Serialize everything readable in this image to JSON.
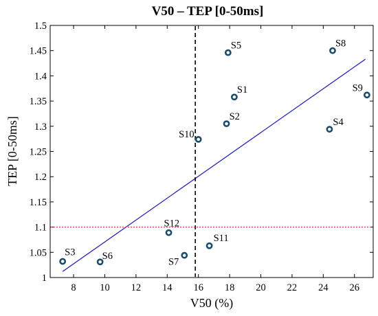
{
  "chart_data": {
    "type": "scatter",
    "title": "V50 – TEP [0-50ms]",
    "xlabel": "V50 (%)",
    "ylabel": "TEP [0-50ms]",
    "xlim": [
      6.5,
      27.2
    ],
    "ylim": [
      1.0,
      1.5
    ],
    "xticks": [
      "8",
      "10",
      "12",
      "14",
      "16",
      "18",
      "20",
      "22",
      "24",
      "26"
    ],
    "yticks": [
      "1",
      "1.05",
      "1.1",
      "1.15",
      "1.2",
      "1.25",
      "1.3",
      "1.35",
      "1.4",
      "1.45",
      "1.5"
    ],
    "grid": false,
    "points": [
      {
        "label": "S1",
        "x": 18.3,
        "y": 1.358
      },
      {
        "label": "S2",
        "x": 17.8,
        "y": 1.305
      },
      {
        "label": "S3",
        "x": 7.3,
        "y": 1.032
      },
      {
        "label": "S4",
        "x": 24.4,
        "y": 1.294
      },
      {
        "label": "S5",
        "x": 17.9,
        "y": 1.446
      },
      {
        "label": "S6",
        "x": 9.7,
        "y": 1.031
      },
      {
        "label": "S7",
        "x": 15.1,
        "y": 1.044
      },
      {
        "label": "S8",
        "x": 24.6,
        "y": 1.45
      },
      {
        "label": "S9",
        "x": 26.8,
        "y": 1.362
      },
      {
        "label": "S10",
        "x": 16.0,
        "y": 1.274
      },
      {
        "label": "S11",
        "x": 16.7,
        "y": 1.063
      },
      {
        "label": "S12",
        "x": 14.1,
        "y": 1.089
      }
    ],
    "regression_line": {
      "x": [
        7.3,
        26.7
      ],
      "y": [
        1.012,
        1.433
      ],
      "color": "#2626b8"
    },
    "threshold_x": {
      "value": 15.8,
      "style": "dashed",
      "color": "#000000"
    },
    "threshold_y": {
      "value": 1.1,
      "style": "dotted",
      "color": "#e0302a"
    },
    "marker_color": "#1b4d6b"
  }
}
